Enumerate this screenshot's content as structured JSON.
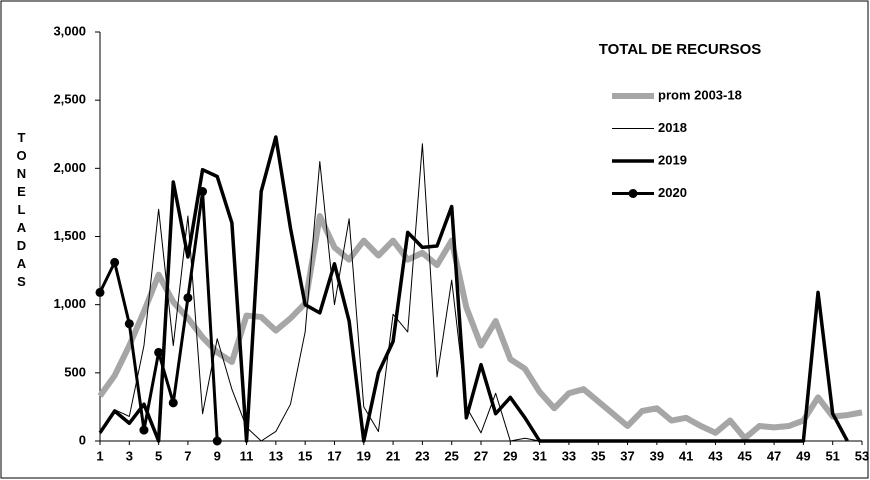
{
  "chart_data": {
    "type": "line",
    "title": "TOTAL DE RECURSOS",
    "y_label": "TONELADAS",
    "x": [
      1,
      2,
      3,
      4,
      5,
      6,
      7,
      8,
      9,
      10,
      11,
      12,
      13,
      14,
      15,
      16,
      17,
      18,
      19,
      20,
      21,
      22,
      23,
      24,
      25,
      26,
      27,
      28,
      29,
      30,
      31,
      32,
      33,
      34,
      35,
      36,
      37,
      38,
      39,
      40,
      41,
      42,
      43,
      44,
      45,
      46,
      47,
      48,
      49,
      50,
      51,
      52,
      53
    ],
    "xlim": [
      1,
      53
    ],
    "xticks": [
      1,
      3,
      5,
      7,
      9,
      11,
      13,
      15,
      17,
      19,
      21,
      23,
      25,
      27,
      29,
      31,
      33,
      35,
      37,
      39,
      41,
      43,
      45,
      47,
      49,
      51,
      53
    ],
    "ylim": [
      0,
      3000
    ],
    "yticks": [
      0,
      500,
      {
        "value": 1000,
        "label": "1,000"
      },
      {
        "value": 1500,
        "label": "1,500"
      },
      {
        "value": 2000,
        "label": "2,000"
      },
      {
        "value": 2500,
        "label": "2,500"
      },
      {
        "value": 3000,
        "label": "3,000"
      }
    ],
    "series": [
      {
        "name": "prom 2003-18",
        "color": "#a6a6a6",
        "width": 6,
        "markers": false,
        "values": [
          330,
          480,
          700,
          950,
          1220,
          1020,
          900,
          760,
          650,
          580,
          920,
          910,
          810,
          900,
          1010,
          1650,
          1420,
          1330,
          1470,
          1360,
          1470,
          1330,
          1380,
          1290,
          1470,
          980,
          700,
          880,
          600,
          530,
          360,
          240,
          350,
          380,
          290,
          200,
          110,
          220,
          240,
          150,
          170,
          110,
          60,
          150,
          20,
          110,
          100,
          110,
          150,
          320,
          180,
          190,
          210
        ]
      },
      {
        "name": "2018",
        "color": "#000000",
        "width": 1,
        "markers": false,
        "values": [
          50,
          230,
          180,
          700,
          1700,
          700,
          1650,
          200,
          750,
          380,
          100,
          0,
          70,
          270,
          800,
          2050,
          1000,
          1630,
          250,
          70,
          930,
          800,
          2180,
          470,
          1180,
          250,
          60,
          350,
          0,
          20,
          0,
          0,
          0,
          0,
          0,
          0,
          0,
          0,
          0,
          0,
          0,
          0,
          0,
          0,
          0,
          0,
          0,
          0,
          0,
          0,
          0,
          0,
          0
        ]
      },
      {
        "name": "2019",
        "color": "#000000",
        "width": 3.5,
        "markers": false,
        "values": [
          60,
          220,
          130,
          270,
          0,
          1900,
          1350,
          1990,
          1940,
          1600,
          0,
          1830,
          2230,
          1560,
          1000,
          940,
          1300,
          880,
          0,
          500,
          730,
          1530,
          1420,
          1430,
          1720,
          170,
          560,
          200,
          320,
          170,
          0,
          0,
          0,
          0,
          0,
          0,
          0,
          0,
          0,
          0,
          0,
          0,
          0,
          0,
          0,
          0,
          0,
          0,
          0,
          1090,
          200,
          0,
          null
        ]
      },
      {
        "name": "2020",
        "color": "#000000",
        "width": 3,
        "markers": true,
        "values": [
          1090,
          1310,
          860,
          80,
          650,
          280,
          1050,
          1830,
          0,
          null,
          null,
          null,
          null,
          null,
          null,
          null,
          null,
          null,
          null,
          null,
          null,
          null,
          null,
          null,
          null,
          null,
          null,
          null,
          null,
          null,
          null,
          null,
          null,
          null,
          null,
          null,
          null,
          null,
          null,
          null,
          null,
          null,
          null,
          null,
          null,
          null,
          null,
          null,
          null,
          null,
          null,
          null,
          null
        ]
      }
    ]
  }
}
